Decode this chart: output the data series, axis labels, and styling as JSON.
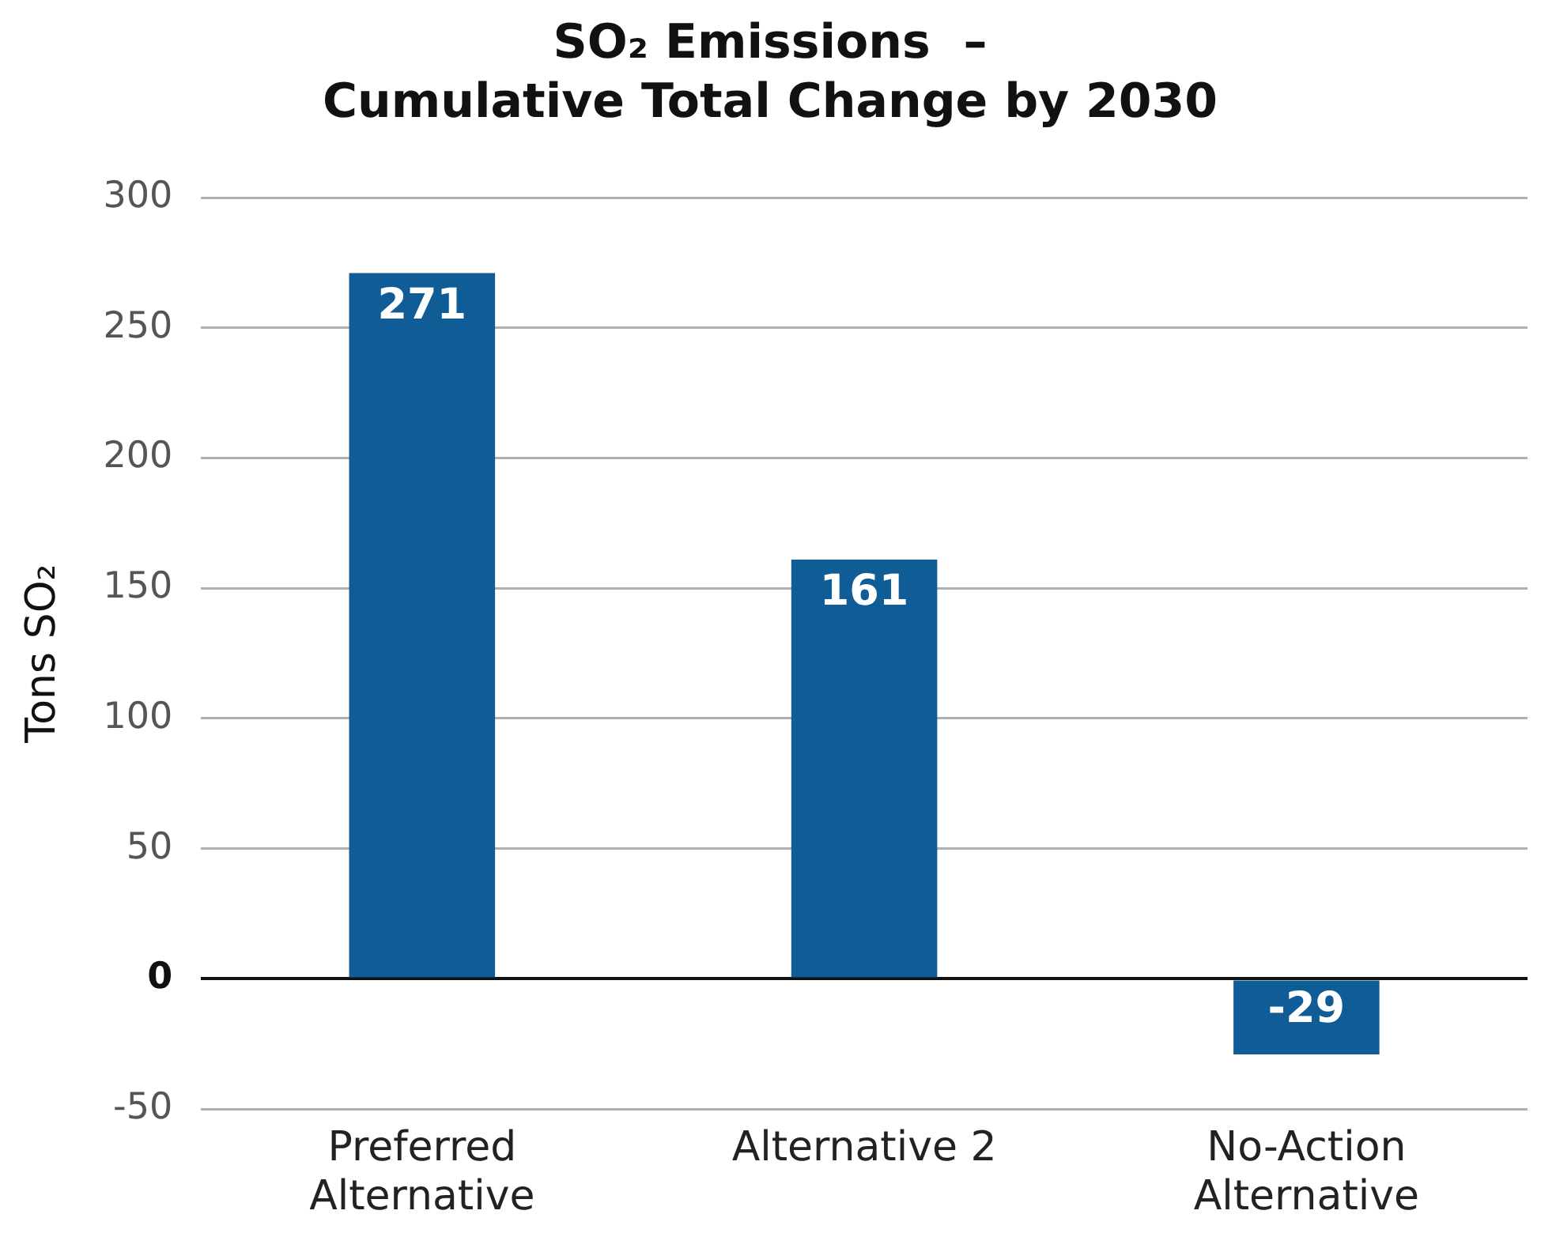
{
  "chart_data": {
    "type": "bar",
    "title": "SO₂ Emissions  –\nCumulative Total Change by 2030",
    "ylabel": "Tons SO₂",
    "categories": [
      "Preferred Alternative",
      "Alternative 2",
      "No-Action Alternative"
    ],
    "values": [
      271,
      161,
      -29
    ],
    "color": "#0f5c96",
    "ylim": [
      -50,
      300
    ],
    "yticks": [
      -50,
      0,
      50,
      100,
      150,
      200,
      250,
      300
    ],
    "grid": "y",
    "legend": false,
    "data_labels": true
  }
}
